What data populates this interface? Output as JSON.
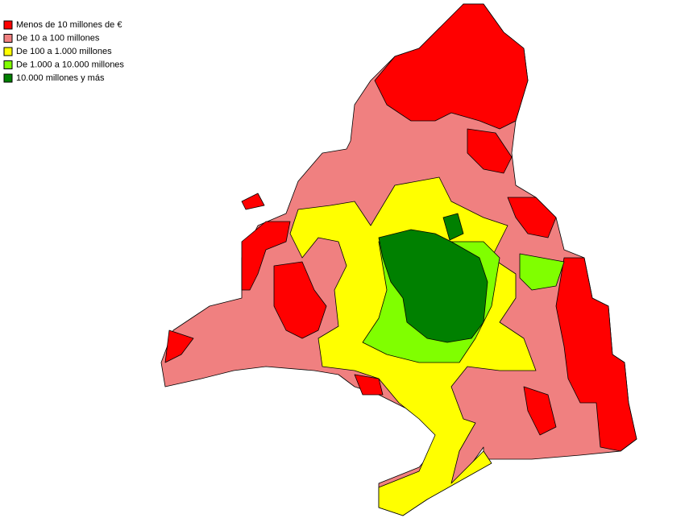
{
  "legend": {
    "items": [
      {
        "label": "Menos de 10 millones de €",
        "color": "#ff0000"
      },
      {
        "label": "De 10 a 100 millones",
        "color": "#f08080"
      },
      {
        "label": "De 100 a 1.000 millones",
        "color": "#ffff00"
      },
      {
        "label": "De 1.000 a 10.000 millones",
        "color": "#80ff00"
      },
      {
        "label": "10.000 millones y más",
        "color": "#008000"
      }
    ]
  }
}
